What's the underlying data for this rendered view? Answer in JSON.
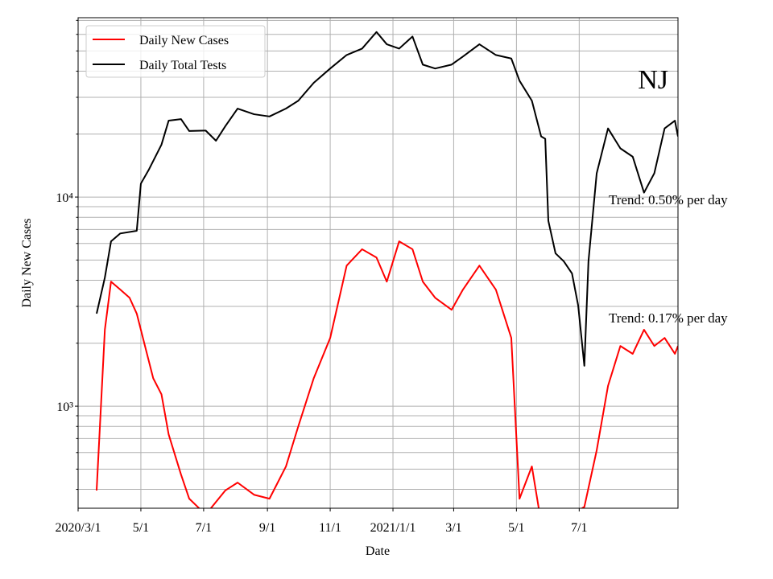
{
  "chart_data": {
    "type": "line",
    "xlabel": "Date",
    "ylabel": "Daily New Cases",
    "log_y": true,
    "grid": true,
    "legend": "upper left",
    "annotations": [
      "NJ",
      "Trend: 0.50% per day",
      "Trend: 0.17% per day"
    ],
    "xlim": [
      "2020-03-01",
      "2021-10-05"
    ],
    "xticks": [
      {
        "value": "2020-03-01",
        "label": "2020/3/1"
      },
      {
        "value": "2020-05-01",
        "label": "5/1"
      },
      {
        "value": "2020-07-01",
        "label": "7/1"
      },
      {
        "value": "2020-09-01",
        "label": "9/1"
      },
      {
        "value": "2020-11-01",
        "label": "11/1"
      },
      {
        "value": "2021-01-01",
        "label": "2021/1/1"
      },
      {
        "value": "2021-03-01",
        "label": "3/1"
      },
      {
        "value": "2021-05-01",
        "label": "5/1"
      },
      {
        "value": "2021-07-01",
        "label": "7/1"
      }
    ],
    "ylim": [
      325,
      72100
    ],
    "yticks": [
      {
        "value": 1000,
        "label": "10³"
      },
      {
        "value": 10000,
        "label": "10⁴"
      }
    ],
    "yminorticks": [
      400,
      500,
      600,
      700,
      800,
      900,
      2000,
      3000,
      4000,
      5000,
      6000,
      7000,
      8000,
      9000,
      20000,
      30000,
      40000,
      50000,
      60000,
      70000
    ],
    "series": [
      {
        "name": "Daily New Cases",
        "color": "#ff0000",
        "x": [
          "2020-03-19",
          "2020-03-23",
          "2020-03-27",
          "2020-04-02",
          "2020-04-11",
          "2020-04-20",
          "2020-04-27",
          "2020-05-05",
          "2020-05-13",
          "2020-05-21",
          "2020-05-28",
          "2020-06-09",
          "2020-06-17",
          "2020-07-03",
          "2020-07-22",
          "2020-08-03",
          "2020-08-19",
          "2020-09-03",
          "2020-09-19",
          "2020-10-01",
          "2020-10-16",
          "2020-11-01",
          "2020-11-17",
          "2020-12-02",
          "2020-12-16",
          "2020-12-26",
          "2021-01-07",
          "2021-01-20",
          "2021-01-30",
          "2021-02-11",
          "2021-02-27",
          "2021-03-10",
          "2021-03-26",
          "2021-04-11",
          "2021-04-26",
          "2021-05-04",
          "2021-05-16",
          "2021-05-25",
          "2021-06-08",
          "2021-06-24",
          "2021-07-06",
          "2021-07-18",
          "2021-07-29",
          "2021-08-10",
          "2021-08-22",
          "2021-09-02",
          "2021-09-12",
          "2021-09-22",
          "2021-10-02",
          "2021-10-05"
        ],
        "values": [
          395,
          956,
          2320,
          3940,
          3610,
          3300,
          2770,
          1940,
          1360,
          1140,
          733,
          471,
          361,
          303,
          395,
          431,
          377,
          361,
          515,
          801,
          1360,
          2120,
          4700,
          5630,
          5140,
          3940,
          6140,
          5630,
          3940,
          3300,
          2890,
          3610,
          4700,
          3610,
          2120,
          361,
          515,
          277,
          253,
          303,
          330,
          615,
          1250,
          1940,
          1780,
          2320,
          1940,
          2120,
          1780,
          1940
        ]
      },
      {
        "name": "Daily Total Tests",
        "color": "#000000",
        "x": [
          "2020-03-19",
          "2020-03-27",
          "2020-04-02",
          "2020-04-11",
          "2020-04-27",
          "2020-05-01",
          "2020-05-09",
          "2020-05-21",
          "2020-05-28",
          "2020-06-09",
          "2020-06-17",
          "2020-07-03",
          "2020-07-13",
          "2020-07-22",
          "2020-08-03",
          "2020-08-19",
          "2020-09-03",
          "2020-09-19",
          "2020-10-01",
          "2020-10-16",
          "2020-11-01",
          "2020-11-17",
          "2020-12-02",
          "2020-12-16",
          "2020-12-26",
          "2021-01-07",
          "2021-01-20",
          "2021-01-30",
          "2021-02-11",
          "2021-02-27",
          "2021-03-10",
          "2021-03-26",
          "2021-04-11",
          "2021-04-26",
          "2021-05-04",
          "2021-05-16",
          "2021-05-25",
          "2021-05-29",
          "2021-06-01",
          "2021-06-08",
          "2021-06-16",
          "2021-06-24",
          "2021-06-30",
          "2021-07-06",
          "2021-07-10",
          "2021-07-18",
          "2021-07-29",
          "2021-08-10",
          "2021-08-22",
          "2021-09-02",
          "2021-09-12",
          "2021-09-22",
          "2021-10-02",
          "2021-10-05"
        ],
        "values": [
          2770,
          4120,
          6140,
          6700,
          6900,
          11600,
          13600,
          17800,
          23200,
          23600,
          20700,
          20800,
          18600,
          21800,
          26500,
          24900,
          24300,
          26500,
          28900,
          35200,
          41200,
          47800,
          51300,
          61600,
          53800,
          51300,
          58600,
          43000,
          41200,
          43000,
          47000,
          53800,
          47800,
          46000,
          36000,
          28900,
          19500,
          19000,
          7700,
          5380,
          4930,
          4310,
          3030,
          1560,
          4930,
          13000,
          21300,
          17100,
          15600,
          10500,
          13000,
          21300,
          23200,
          19500
        ]
      }
    ]
  }
}
